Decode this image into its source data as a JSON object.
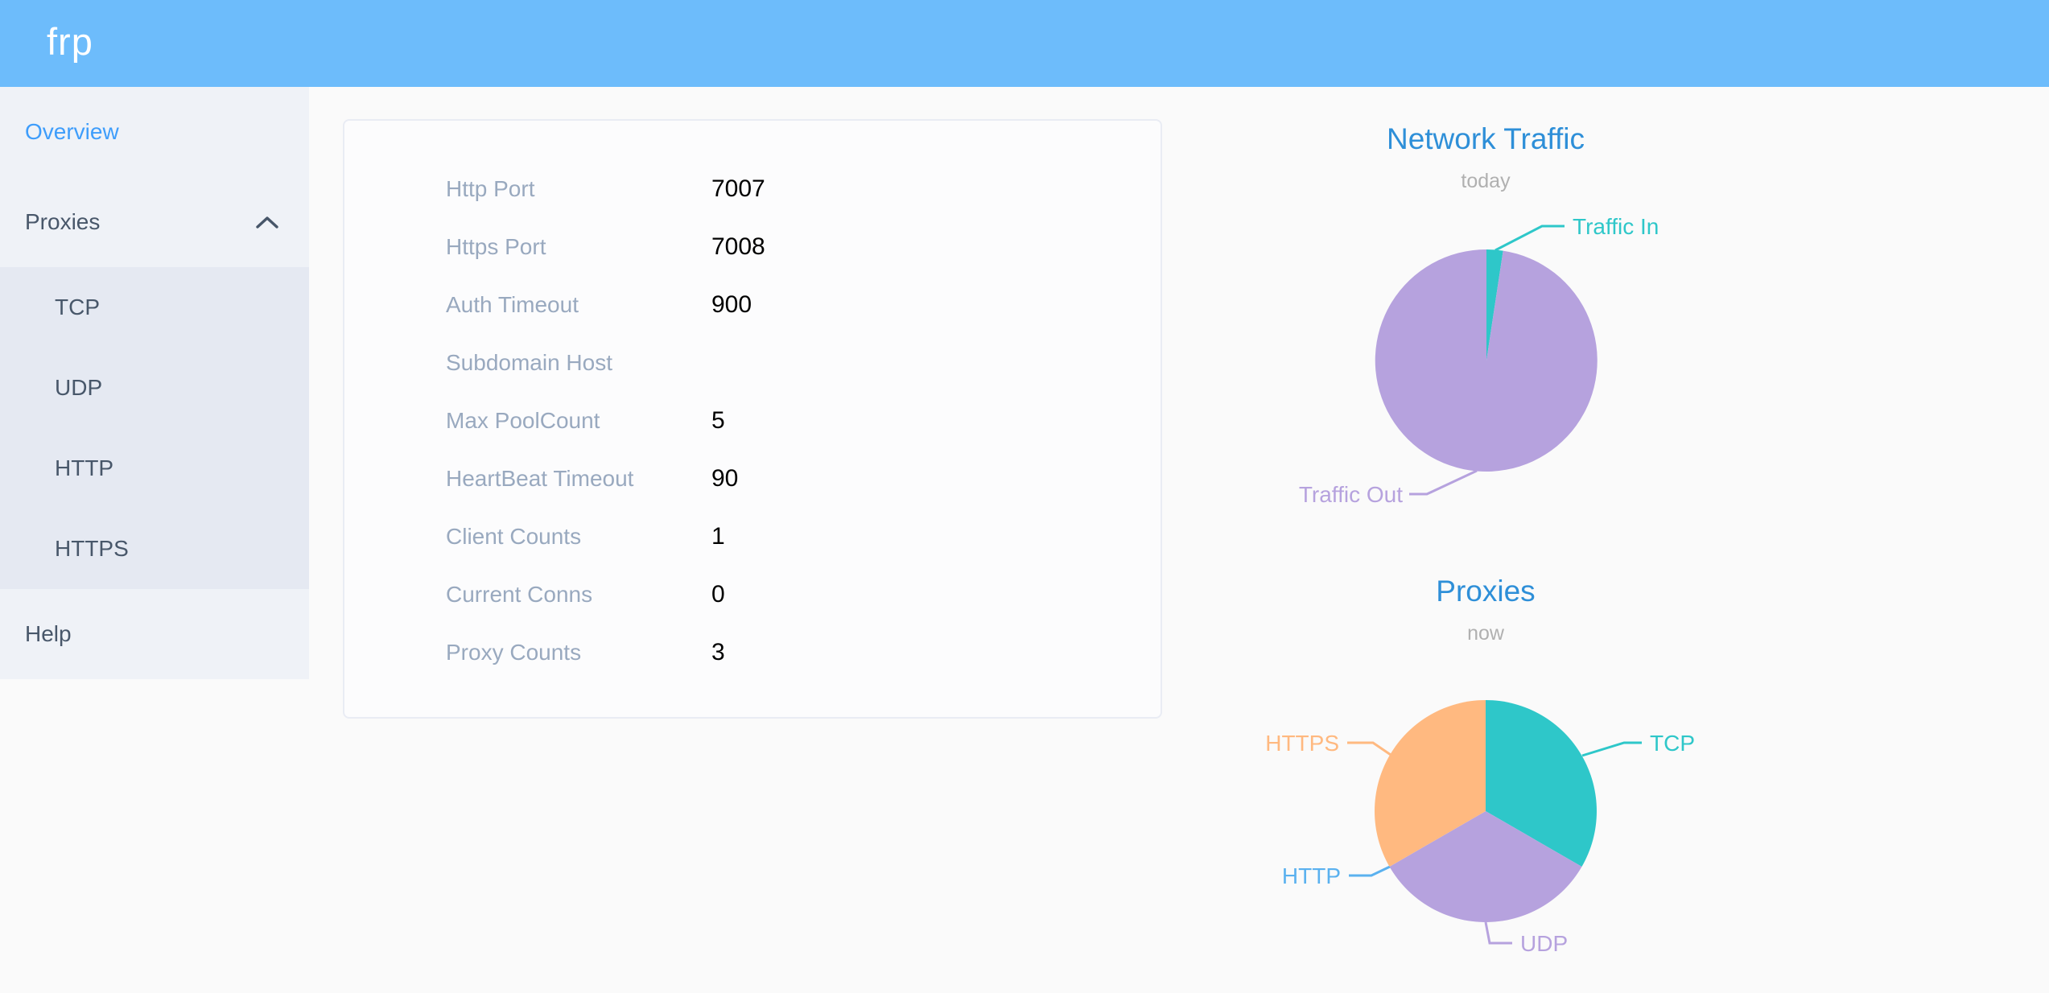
{
  "app": {
    "logo_text": "frp"
  },
  "sidebar": {
    "items": [
      {
        "label": "Overview",
        "active": true
      },
      {
        "label": "Proxies",
        "expanded": true,
        "children": [
          {
            "label": "TCP"
          },
          {
            "label": "UDP"
          },
          {
            "label": "HTTP"
          },
          {
            "label": "HTTPS"
          }
        ]
      },
      {
        "label": "Help"
      }
    ]
  },
  "config": {
    "rows": [
      {
        "label": "Http Port",
        "value": "7007"
      },
      {
        "label": "Https Port",
        "value": "7008"
      },
      {
        "label": "Auth Timeout",
        "value": "900"
      },
      {
        "label": "Subdomain Host",
        "value": ""
      },
      {
        "label": "Max PoolCount",
        "value": "5"
      },
      {
        "label": "HeartBeat Timeout",
        "value": "90"
      },
      {
        "label": "Client Counts",
        "value": "1"
      },
      {
        "label": "Current Conns",
        "value": "0"
      },
      {
        "label": "Proxy Counts",
        "value": "3"
      }
    ]
  },
  "chart_data": [
    {
      "type": "pie",
      "title": "Network Traffic",
      "subtitle": "today",
      "legend_position": "outside-labels",
      "slices": [
        {
          "label": "Traffic In",
          "percent": 2.4,
          "color": "#2ec7c9"
        },
        {
          "label": "Traffic Out",
          "percent": 97.6,
          "color": "#b6a2de"
        }
      ]
    },
    {
      "type": "pie",
      "title": "Proxies",
      "subtitle": "now",
      "legend_position": "outside-labels",
      "slices": [
        {
          "label": "TCP",
          "value": 1,
          "color": "#2ec7c9"
        },
        {
          "label": "UDP",
          "value": 1,
          "color": "#b6a2de"
        },
        {
          "label": "HTTP",
          "value": 0,
          "color": "#5ab1ef"
        },
        {
          "label": "HTTPS",
          "value": 1,
          "color": "#ffb980"
        }
      ]
    }
  ],
  "colors": {
    "header_bg": "#6dbcfb",
    "sidebar_bg": "#eff2f7",
    "submenu_bg": "#e5e9f2",
    "menu_text": "#48576a",
    "menu_active_text": "#3e9dfb",
    "card_border": "#e9ecf4",
    "row_label": "#99a9bf",
    "row_value": "#000000",
    "chart_title": "#2e8fd8",
    "chart_subtitle": "#b0b0b0",
    "pie_teal": "#2ec7c9",
    "pie_purple": "#b6a2de",
    "pie_orange": "#ffb980",
    "pie_blue": "#5ab1ef"
  }
}
